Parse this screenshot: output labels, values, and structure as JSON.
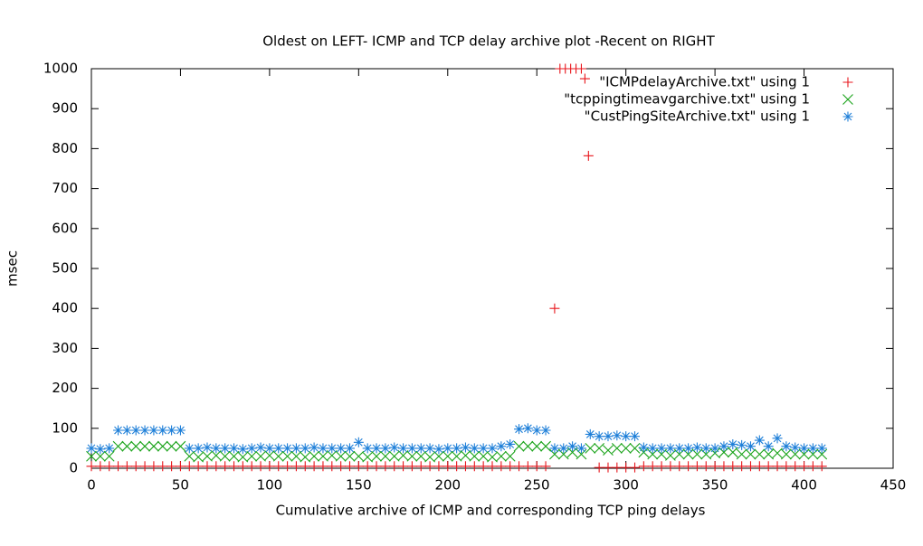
{
  "chart_data": {
    "type": "scatter",
    "title": "Oldest on LEFT- ICMP and TCP delay archive plot -Recent on RIGHT",
    "x_label": "Cumulative archive of ICMP and corresponding TCP ping delays",
    "y_label": "msec",
    "xlim": [
      0,
      450
    ],
    "xticks": [
      0,
      50,
      100,
      150,
      200,
      250,
      300,
      350,
      400,
      450
    ],
    "ylim": [
      0,
      1000
    ],
    "yticks": [
      0,
      100,
      200,
      300,
      400,
      500,
      600,
      700,
      800,
      900,
      1000
    ],
    "legend": "top-right",
    "series": [
      {
        "name": "\"ICMPdelayArchive.txt\" using 1",
        "color": "#e8161c",
        "marker": "plus",
        "x": [
          0,
          5,
          10,
          15,
          20,
          25,
          30,
          35,
          40,
          45,
          50,
          55,
          60,
          65,
          70,
          75,
          80,
          85,
          90,
          95,
          100,
          105,
          110,
          115,
          120,
          125,
          130,
          135,
          140,
          145,
          150,
          155,
          160,
          165,
          170,
          175,
          180,
          185,
          190,
          195,
          200,
          205,
          210,
          215,
          220,
          225,
          230,
          235,
          240,
          245,
          250,
          255,
          260,
          263,
          266,
          269,
          272,
          275,
          277,
          279,
          285,
          290,
          295,
          300,
          305,
          310,
          315,
          320,
          325,
          330,
          335,
          340,
          345,
          350,
          355,
          360,
          365,
          370,
          375,
          380,
          385,
          390,
          395,
          400,
          405,
          410
        ],
        "values": [
          5,
          5,
          5,
          5,
          5,
          5,
          5,
          5,
          5,
          5,
          5,
          5,
          5,
          5,
          5,
          5,
          5,
          5,
          5,
          5,
          5,
          5,
          5,
          5,
          5,
          5,
          5,
          5,
          5,
          5,
          5,
          5,
          5,
          5,
          5,
          5,
          5,
          5,
          5,
          5,
          5,
          5,
          5,
          5,
          5,
          5,
          5,
          5,
          5,
          5,
          5,
          5,
          400,
          1000,
          1000,
          1000,
          1000,
          1000,
          975,
          782,
          2,
          2,
          2,
          2,
          2,
          5,
          5,
          5,
          5,
          5,
          5,
          5,
          5,
          5,
          5,
          5,
          5,
          5,
          5,
          5,
          5,
          5,
          5,
          5,
          5,
          5
        ]
      },
      {
        "name": "\"tcppingtimeavgarchive.txt\" using 1",
        "color": "#1aa31a",
        "marker": "cross",
        "x": [
          0,
          5,
          10,
          15,
          20,
          25,
          30,
          35,
          40,
          45,
          50,
          55,
          60,
          65,
          70,
          75,
          80,
          85,
          90,
          95,
          100,
          105,
          110,
          115,
          120,
          125,
          130,
          135,
          140,
          145,
          150,
          155,
          160,
          165,
          170,
          175,
          180,
          185,
          190,
          195,
          200,
          205,
          210,
          215,
          220,
          225,
          230,
          235,
          240,
          245,
          250,
          255,
          260,
          265,
          270,
          275,
          280,
          285,
          290,
          295,
          300,
          305,
          310,
          315,
          320,
          325,
          330,
          335,
          340,
          345,
          350,
          355,
          360,
          365,
          370,
          375,
          380,
          385,
          390,
          395,
          400,
          405,
          410
        ],
        "values": [
          30,
          30,
          30,
          55,
          55,
          55,
          55,
          55,
          55,
          55,
          55,
          30,
          28,
          30,
          32,
          30,
          30,
          28,
          30,
          30,
          32,
          30,
          30,
          30,
          28,
          30,
          30,
          32,
          30,
          30,
          30,
          28,
          30,
          30,
          30,
          32,
          30,
          30,
          28,
          30,
          30,
          30,
          32,
          30,
          30,
          28,
          30,
          30,
          55,
          55,
          55,
          55,
          35,
          35,
          40,
          35,
          50,
          50,
          45,
          50,
          50,
          50,
          40,
          35,
          35,
          32,
          35,
          35,
          35,
          35,
          38,
          40,
          40,
          35,
          35,
          35,
          35,
          38,
          35,
          35,
          35,
          35,
          35
        ]
      },
      {
        "name": "\"CustPingSiteArchive.txt\" using 1",
        "color": "#1e7fd8",
        "marker": "star",
        "x": [
          0,
          5,
          10,
          15,
          20,
          25,
          30,
          35,
          40,
          45,
          50,
          55,
          60,
          65,
          70,
          75,
          80,
          85,
          90,
          95,
          100,
          105,
          110,
          115,
          120,
          125,
          130,
          135,
          140,
          145,
          150,
          155,
          160,
          165,
          170,
          175,
          180,
          185,
          190,
          195,
          200,
          205,
          210,
          215,
          220,
          225,
          230,
          235,
          240,
          245,
          250,
          255,
          260,
          265,
          270,
          275,
          280,
          285,
          290,
          295,
          300,
          305,
          310,
          315,
          320,
          325,
          330,
          335,
          340,
          345,
          350,
          355,
          360,
          365,
          370,
          375,
          380,
          385,
          390,
          395,
          400,
          405,
          410
        ],
        "values": [
          50,
          48,
          50,
          95,
          95,
          95,
          95,
          95,
          95,
          95,
          95,
          50,
          50,
          52,
          50,
          50,
          50,
          48,
          50,
          52,
          50,
          50,
          50,
          50,
          50,
          52,
          50,
          50,
          50,
          50,
          65,
          50,
          50,
          50,
          52,
          50,
          50,
          50,
          50,
          48,
          50,
          50,
          52,
          50,
          50,
          50,
          55,
          60,
          98,
          100,
          95,
          95,
          50,
          50,
          55,
          50,
          85,
          80,
          80,
          82,
          80,
          80,
          52,
          50,
          50,
          50,
          50,
          50,
          52,
          50,
          50,
          55,
          60,
          58,
          55,
          70,
          55,
          75,
          55,
          52,
          50,
          50,
          50
        ]
      }
    ]
  }
}
